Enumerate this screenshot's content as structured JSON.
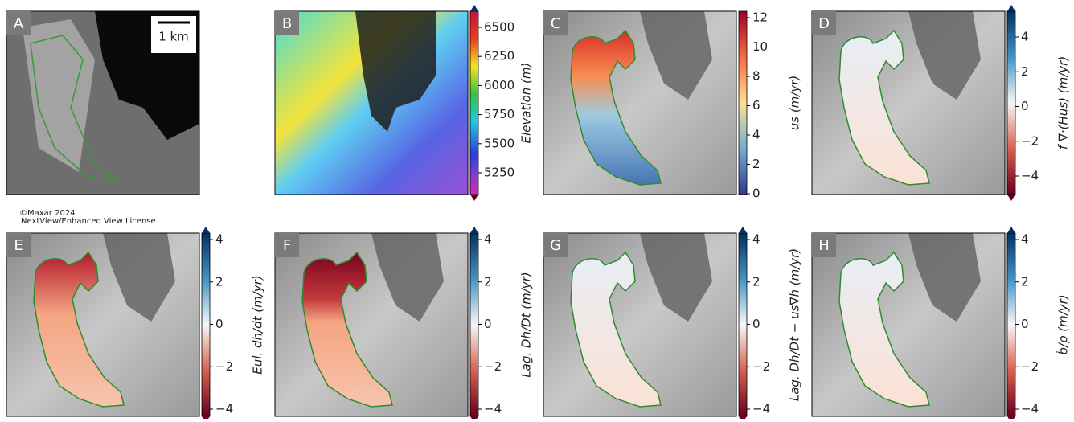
{
  "panels": [
    {
      "letter": "A",
      "scale_bar": "1 km"
    },
    {
      "letter": "B",
      "colorbar": {
        "label": "Elevation (m)",
        "ticks": [
          6500,
          6250,
          6000,
          5750,
          5500,
          5250
        ]
      }
    },
    {
      "letter": "C",
      "colorbar": {
        "label": "us (m/yr)",
        "ticks": [
          12,
          10,
          8,
          6,
          4,
          2,
          0
        ]
      }
    },
    {
      "letter": "D",
      "colorbar": {
        "label": "f ∇·(Hus) (m/yr)",
        "ticks": [
          4,
          2,
          0,
          {
            "value": -2,
            "label": "−2"
          },
          {
            "value": -4,
            "label": "−4"
          }
        ]
      }
    },
    {
      "letter": "E",
      "colorbar": {
        "label": "Eul. dh/dt (m/yr)",
        "ticks": [
          4,
          2,
          0,
          {
            "value": -2,
            "label": "−2"
          },
          {
            "value": -4,
            "label": "−4"
          }
        ]
      }
    },
    {
      "letter": "F",
      "colorbar": {
        "label": "Lag. Dh/Dt (m/yr)",
        "ticks": [
          4,
          2,
          0,
          {
            "value": -2,
            "label": "−2"
          },
          {
            "value": -4,
            "label": "−4"
          }
        ]
      }
    },
    {
      "letter": "G",
      "colorbar": {
        "label": "Lag. Dh/Dt − us∇h (m/yr)",
        "ticks": [
          4,
          2,
          0,
          {
            "value": -2,
            "label": "−2"
          },
          {
            "value": -4,
            "label": "−4"
          }
        ]
      }
    },
    {
      "letter": "H",
      "colorbar": {
        "label": "ḃ/ρ (m/yr)",
        "ticks": [
          4,
          2,
          0,
          {
            "value": -2,
            "label": "−2"
          },
          {
            "value": -4,
            "label": "−4"
          }
        ]
      }
    }
  ],
  "credit": [
    "©Maxar 2024",
    "NextView/Enhanced View License"
  ]
}
